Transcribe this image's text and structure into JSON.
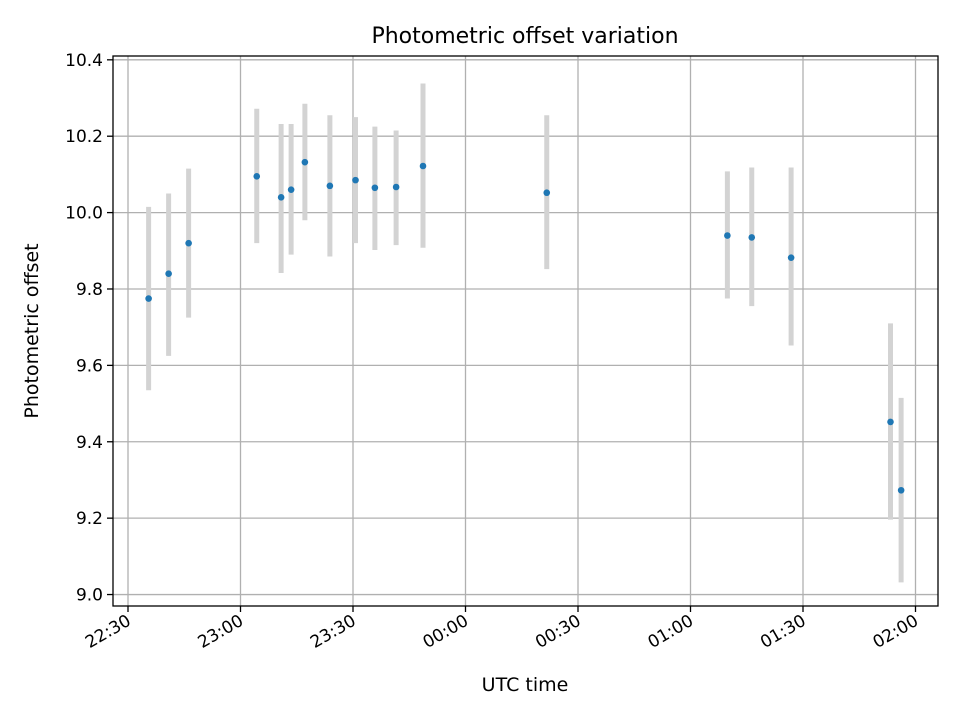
{
  "chart_data": {
    "type": "scatter",
    "title": "Photometric offset variation",
    "xlabel": "UTC time",
    "ylabel": "Photometric offset",
    "grid": true,
    "x_axis": {
      "unit": "UTC time (HH:MM), times after midnight belong to the following day",
      "range": [
        "22:26",
        "02:06"
      ],
      "ticks": [
        "22:30",
        "23:00",
        "23:30",
        "00:00",
        "00:30",
        "01:00",
        "01:30",
        "02:00"
      ]
    },
    "y_axis": {
      "range": [
        8.97,
        10.41
      ],
      "ticks": [
        "9.0",
        "9.2",
        "9.4",
        "9.6",
        "9.8",
        "10.0",
        "10.2",
        "10.4"
      ]
    },
    "marker_color": "#1f77b4",
    "errorbar_color": "#d3d3d3",
    "points": [
      {
        "time": "22:35:30",
        "y": 9.775,
        "lo": 9.535,
        "hi": 10.015
      },
      {
        "time": "22:40:50",
        "y": 9.84,
        "lo": 9.625,
        "hi": 10.05
      },
      {
        "time": "22:46:10",
        "y": 9.92,
        "lo": 9.725,
        "hi": 10.115
      },
      {
        "time": "23:04:20",
        "y": 10.095,
        "lo": 9.92,
        "hi": 10.272
      },
      {
        "time": "23:10:50",
        "y": 10.04,
        "lo": 9.842,
        "hi": 10.232
      },
      {
        "time": "23:13:30",
        "y": 10.06,
        "lo": 9.89,
        "hi": 10.232
      },
      {
        "time": "23:17:10",
        "y": 10.132,
        "lo": 9.98,
        "hi": 10.285
      },
      {
        "time": "23:23:50",
        "y": 10.07,
        "lo": 9.885,
        "hi": 10.255
      },
      {
        "time": "23:30:40",
        "y": 10.085,
        "lo": 9.92,
        "hi": 10.25
      },
      {
        "time": "23:35:50",
        "y": 10.065,
        "lo": 9.902,
        "hi": 10.225
      },
      {
        "time": "23:41:30",
        "y": 10.067,
        "lo": 9.915,
        "hi": 10.215
      },
      {
        "time": "23:48:40",
        "y": 10.122,
        "lo": 9.908,
        "hi": 10.338
      },
      {
        "time": "00:21:40",
        "y": 10.052,
        "lo": 9.852,
        "hi": 10.255
      },
      {
        "time": "01:09:50",
        "y": 9.94,
        "lo": 9.775,
        "hi": 10.108
      },
      {
        "time": "01:16:20",
        "y": 9.935,
        "lo": 9.755,
        "hi": 10.118
      },
      {
        "time": "01:26:50",
        "y": 9.882,
        "lo": 9.652,
        "hi": 10.118
      },
      {
        "time": "01:53:20",
        "y": 9.452,
        "lo": 9.196,
        "hi": 9.71
      },
      {
        "time": "01:56:10",
        "y": 9.273,
        "lo": 9.032,
        "hi": 9.515
      }
    ]
  }
}
